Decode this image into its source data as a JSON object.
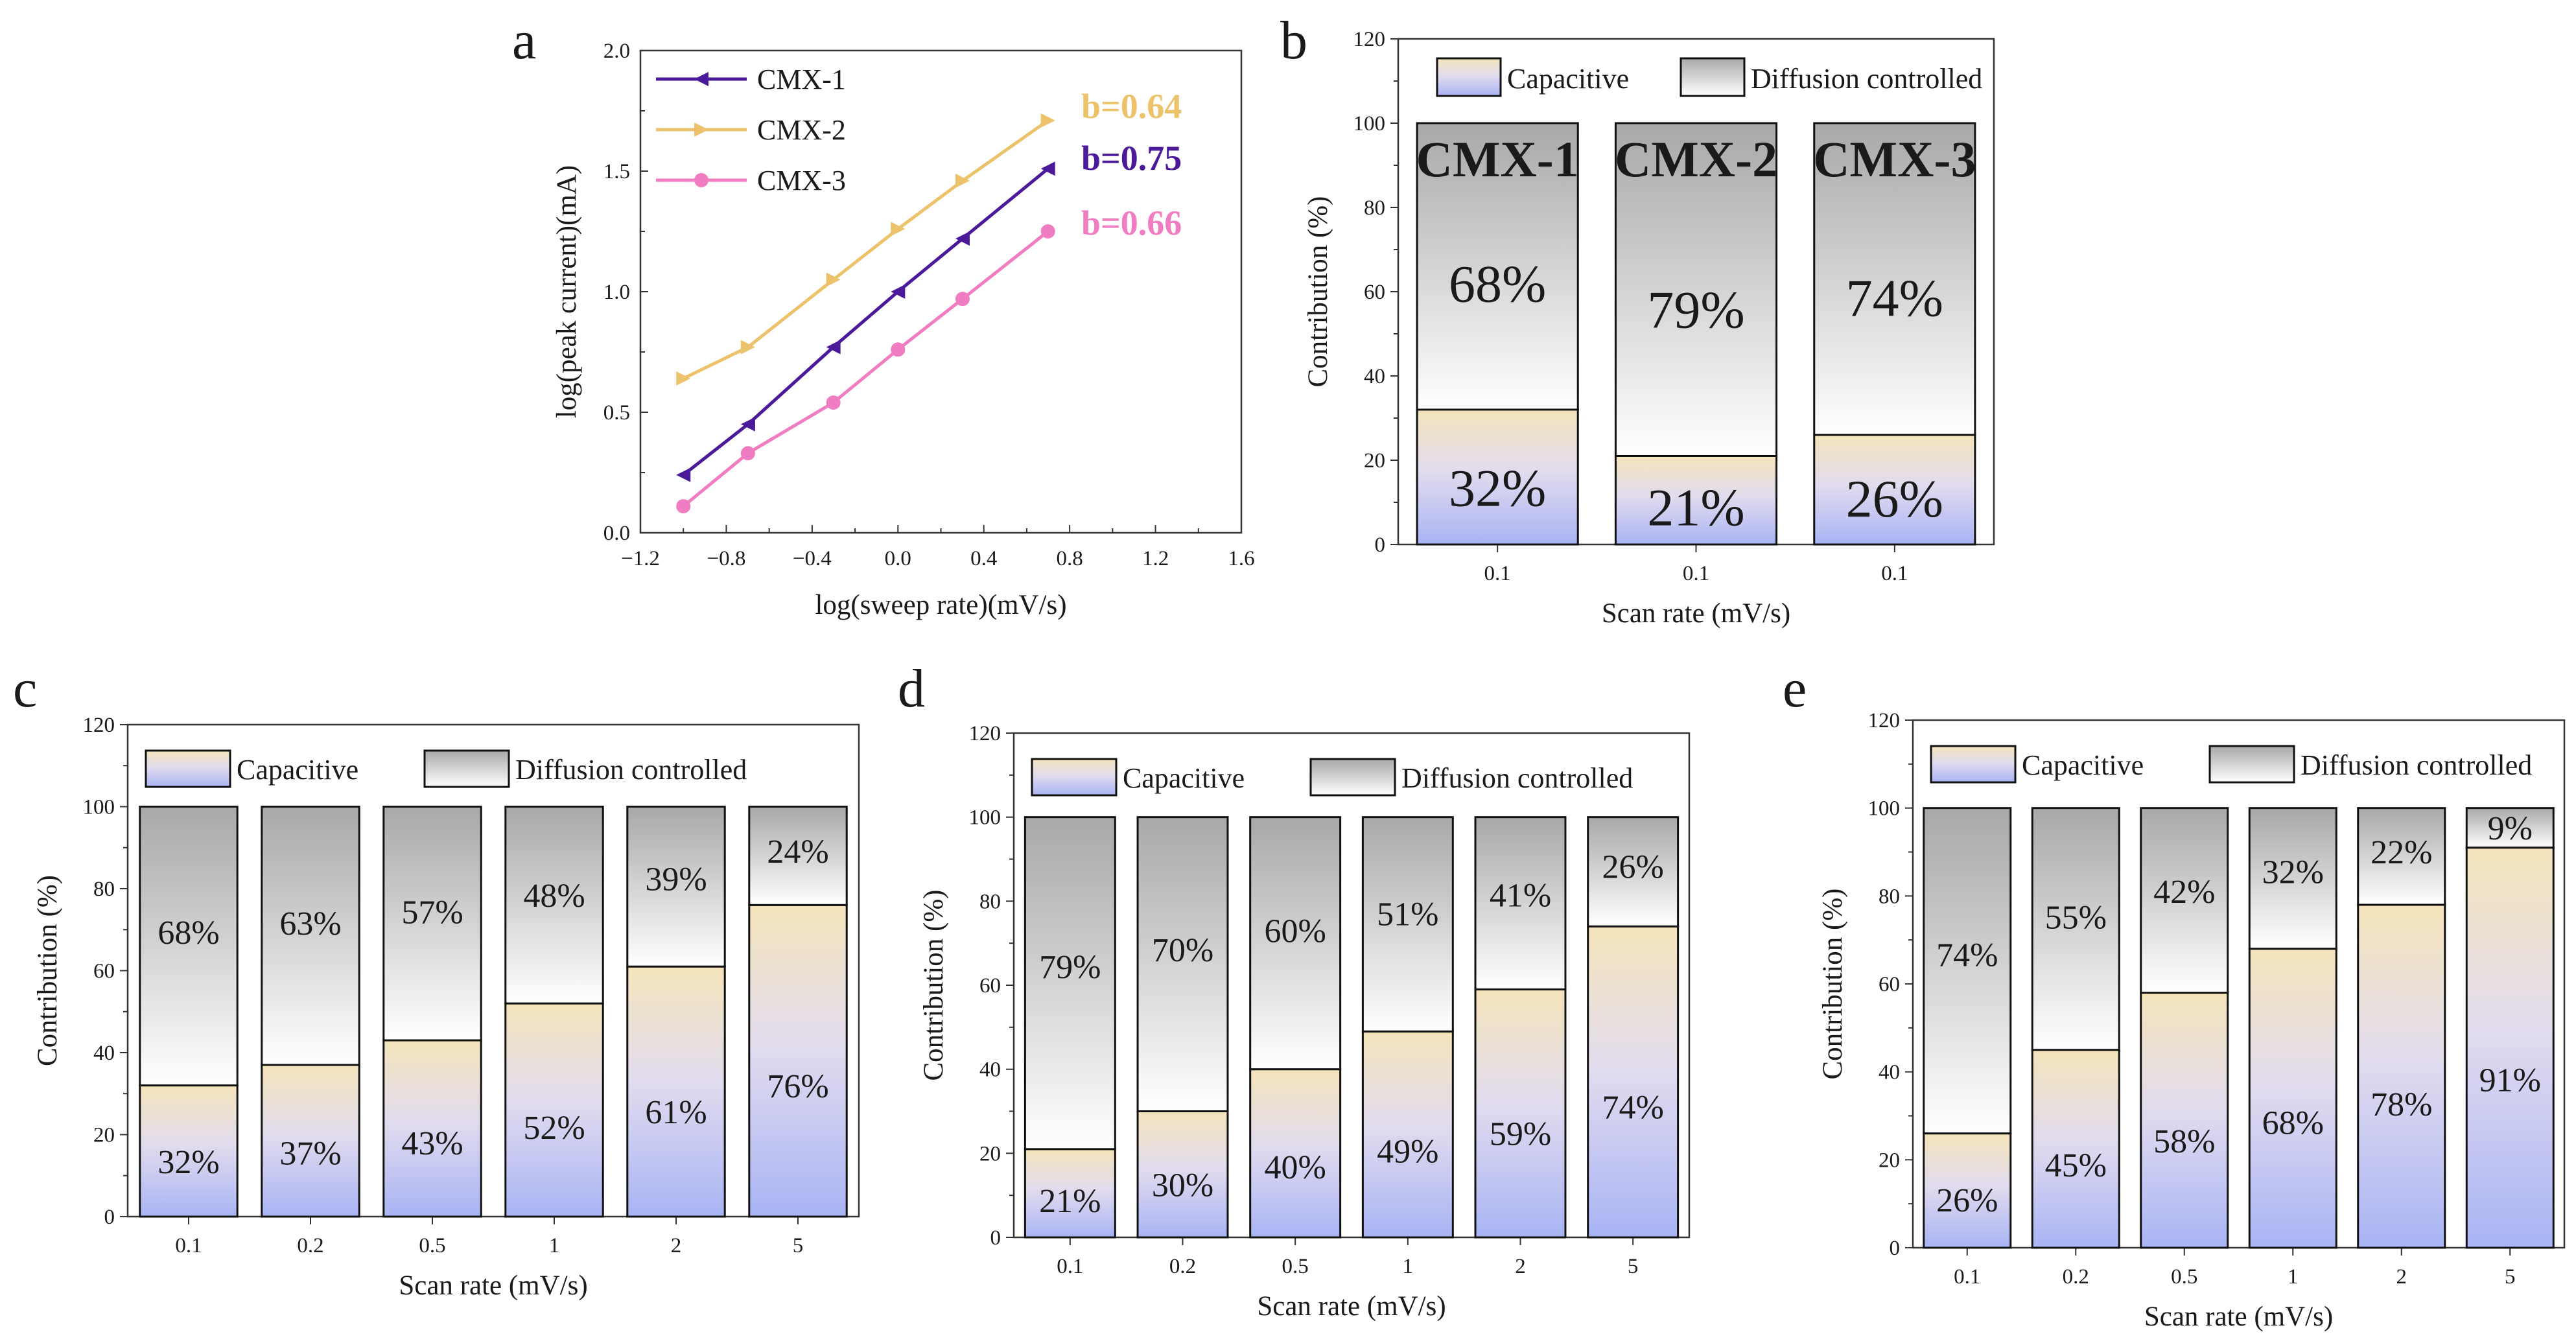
{
  "chart_data": [
    {
      "panel": "a",
      "type": "line",
      "xlabel": "log(sweep rate)(mV/s)",
      "ylabel": "log(peak current)(mA)",
      "xlim": [
        -1.2,
        1.6
      ],
      "ylim": [
        0.0,
        2.0
      ],
      "xticks": [
        "−1.2",
        "−0.8",
        "−0.4",
        "0.0",
        "0.4",
        "0.8",
        "1.2",
        "1.6"
      ],
      "yticks": [
        "0.0",
        "0.5",
        "1.0",
        "1.5",
        "2.0"
      ],
      "legend_position": "top-left",
      "series": [
        {
          "name": "CMX-1",
          "color": "#4b1a9a",
          "marker": "triangle-left",
          "x": [
            -1.0,
            -0.699,
            -0.301,
            0.0,
            0.301,
            0.699
          ],
          "y": [
            0.24,
            0.45,
            0.77,
            1.0,
            1.22,
            1.51
          ],
          "annotation": "b=0.75"
        },
        {
          "name": "CMX-2",
          "color": "#ecc36b",
          "marker": "triangle-right",
          "x": [
            -1.0,
            -0.699,
            -0.301,
            0.0,
            0.301,
            0.699
          ],
          "y": [
            0.64,
            0.77,
            1.05,
            1.26,
            1.46,
            1.71
          ],
          "annotation": "b=0.64"
        },
        {
          "name": "CMX-3",
          "color": "#f07cc2",
          "marker": "circle",
          "x": [
            -1.0,
            -0.699,
            -0.301,
            0.0,
            0.301,
            0.699
          ],
          "y": [
            0.11,
            0.33,
            0.54,
            0.76,
            0.97,
            1.25
          ],
          "annotation": "b=0.66"
        }
      ]
    },
    {
      "panel": "b",
      "type": "bar",
      "stacked": true,
      "xlabel": "Scan rate (mV/s)",
      "ylabel": "Contribution (%)",
      "ylim": [
        0,
        120
      ],
      "yticks": [
        "0",
        "20",
        "40",
        "60",
        "80",
        "100",
        "120"
      ],
      "categories": [
        "0.1",
        "0.1",
        "0.1"
      ],
      "bar_titles": [
        "CMX-1",
        "CMX-2",
        "CMX-3"
      ],
      "legend": [
        "Capacitive",
        "Diffusion controlled"
      ],
      "series": [
        {
          "name": "Capacitive",
          "values": [
            32,
            21,
            26
          ],
          "labels": [
            "32%",
            "21%",
            "26%"
          ]
        },
        {
          "name": "Diffusion controlled",
          "values": [
            68,
            79,
            74
          ],
          "labels": [
            "68%",
            "79%",
            "74%"
          ]
        }
      ]
    },
    {
      "panel": "c",
      "type": "bar",
      "stacked": true,
      "xlabel": "Scan rate (mV/s)",
      "ylabel": "Contribution (%)",
      "ylim": [
        0,
        120
      ],
      "yticks": [
        "0",
        "20",
        "40",
        "60",
        "80",
        "100",
        "120"
      ],
      "categories": [
        "0.1",
        "0.2",
        "0.5",
        "1",
        "2",
        "5"
      ],
      "legend": [
        "Capacitive",
        "Diffusion controlled"
      ],
      "series": [
        {
          "name": "Capacitive",
          "values": [
            32,
            37,
            43,
            52,
            61,
            76
          ],
          "labels": [
            "32%",
            "37%",
            "43%",
            "52%",
            "61%",
            "76%"
          ]
        },
        {
          "name": "Diffusion controlled",
          "values": [
            68,
            63,
            57,
            48,
            39,
            24
          ],
          "labels": [
            "68%",
            "63%",
            "57%",
            "48%",
            "39%",
            "24%"
          ]
        }
      ]
    },
    {
      "panel": "d",
      "type": "bar",
      "stacked": true,
      "xlabel": "Scan rate (mV/s)",
      "ylabel": "Contribution (%)",
      "ylim": [
        0,
        120
      ],
      "yticks": [
        "0",
        "20",
        "40",
        "60",
        "80",
        "100",
        "120"
      ],
      "categories": [
        "0.1",
        "0.2",
        "0.5",
        "1",
        "2",
        "5"
      ],
      "legend": [
        "Capacitive",
        "Diffusion controlled"
      ],
      "series": [
        {
          "name": "Capacitive",
          "values": [
            21,
            30,
            40,
            49,
            59,
            74
          ],
          "labels": [
            "21%",
            "30%",
            "40%",
            "49%",
            "59%",
            "74%"
          ]
        },
        {
          "name": "Diffusion controlled",
          "values": [
            79,
            70,
            60,
            51,
            41,
            26
          ],
          "labels": [
            "79%",
            "70%",
            "60%",
            "51%",
            "41%",
            "26%"
          ]
        }
      ]
    },
    {
      "panel": "e",
      "type": "bar",
      "stacked": true,
      "xlabel": "Scan rate (mV/s)",
      "ylabel": "Contribution (%)",
      "ylim": [
        0,
        120
      ],
      "yticks": [
        "0",
        "20",
        "40",
        "60",
        "80",
        "100",
        "120"
      ],
      "categories": [
        "0.1",
        "0.2",
        "0.5",
        "1",
        "2",
        "5"
      ],
      "legend": [
        "Capacitive",
        "Diffusion controlled"
      ],
      "series": [
        {
          "name": "Capacitive",
          "values": [
            26,
            45,
            58,
            68,
            78,
            91
          ],
          "labels": [
            "26%",
            "45%",
            "58%",
            "68%",
            "78%",
            "91%"
          ]
        },
        {
          "name": "Diffusion controlled",
          "values": [
            74,
            55,
            42,
            32,
            22,
            9
          ],
          "labels": [
            "74%",
            "55%",
            "42%",
            "32%",
            "22%",
            "9%"
          ]
        }
      ]
    }
  ]
}
